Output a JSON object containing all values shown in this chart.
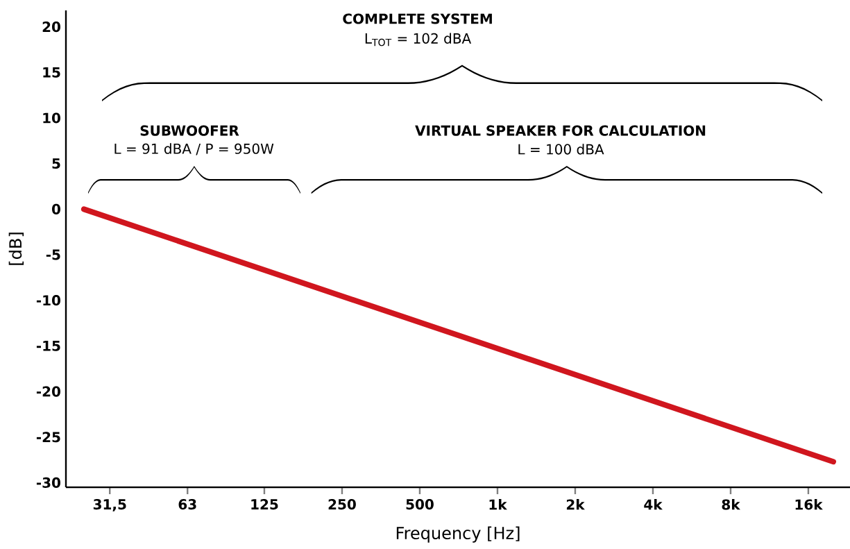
{
  "chart_data": {
    "type": "line",
    "xlabel": "Frequency [Hz]",
    "ylabel": "[dB]",
    "x": [
      25,
      20000
    ],
    "values": [
      0,
      -27.7
    ],
    "color": "#d0161e",
    "log": "x",
    "grid": false,
    "marker": "none",
    "line_style": "solid",
    "xlim": [
      21.3,
      23200
    ],
    "ylim": [
      -30.5,
      21.8
    ],
    "xticks": [
      {
        "value": 31.5,
        "label": "31,5"
      },
      63,
      125,
      250,
      500,
      {
        "value": 1000,
        "label": "1k"
      },
      {
        "value": 2000,
        "label": "2k"
      },
      {
        "value": 4000,
        "label": "4k"
      },
      {
        "value": 8000,
        "label": "8k"
      },
      {
        "value": 16000,
        "label": "16k"
      }
    ],
    "yticks": [
      -30,
      -25,
      -20,
      -15,
      -10,
      -5,
      0,
      5,
      10,
      15,
      20
    ],
    "annotations": [
      "COMPLETE SYSTEM",
      "L$_{TOT}$ = 102 dBA",
      "SUBWOOFER",
      "L = 91 dBA / P = 950W",
      "VIRTUAL SPEAKER FOR CALCULATION",
      "L = 100 dBA"
    ]
  }
}
